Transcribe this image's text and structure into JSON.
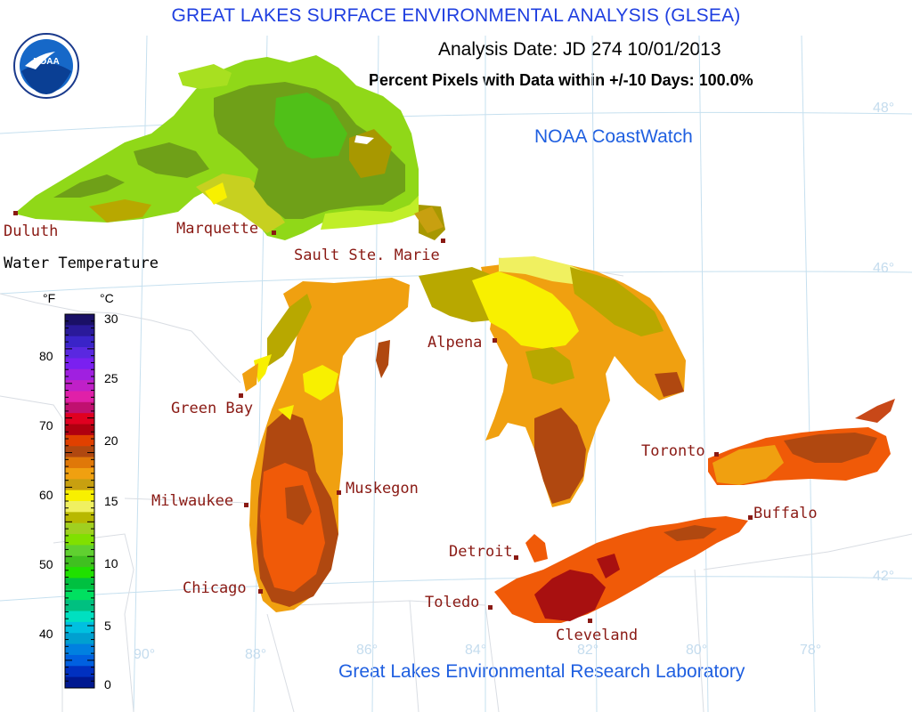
{
  "header": {
    "title": "GREAT LAKES SURFACE ENVIRONMENTAL ANALYSIS (GLSEA)",
    "analysis_date": "Analysis Date:  JD 274 10/01/2013",
    "percent_pixels": "Percent Pixels with Data within +/-10 Days: 100.0%"
  },
  "credits": {
    "coastwatch": "NOAA CoastWatch",
    "lab": "Great Lakes Environmental Research Laboratory",
    "logo_text": "NOAA"
  },
  "legend": {
    "title": "Water Temperature",
    "unit_f": "°F",
    "unit_c": "°C",
    "f_ticks": [
      "80",
      "70",
      "60",
      "50",
      "40"
    ],
    "c_ticks": [
      "30",
      "25",
      "20",
      "15",
      "10",
      "5",
      "0"
    ],
    "color_steps_top_to_bottom": [
      "#1a1066",
      "#2a1a9a",
      "#3a24c8",
      "#5a28e0",
      "#7a20f0",
      "#a020e0",
      "#c020c8",
      "#e020a8",
      "#c01070",
      "#e00020",
      "#b00010",
      "#e04000",
      "#b04810",
      "#e07808",
      "#f0a010",
      "#c8a010",
      "#f8f000",
      "#f0f060",
      "#b8b800",
      "#a0d020",
      "#80e000",
      "#60d030",
      "#40c020",
      "#20e000",
      "#00c040",
      "#00e060",
      "#00c080",
      "#00e0c0",
      "#00c0e0",
      "#00a0d0",
      "#0080e0",
      "#0060e0",
      "#0030c0",
      "#001890"
    ]
  },
  "grid_labels": {
    "longitude": [
      "90°",
      "88°",
      "86°",
      "84°",
      "82°",
      "80°",
      "78°"
    ],
    "latitude": [
      "48°",
      "46°",
      "42°"
    ]
  },
  "cities": [
    "Duluth",
    "Marquette",
    "Sault Ste. Marie",
    "Green Bay",
    "Alpena",
    "Muskegon",
    "Milwaukee",
    "Chicago",
    "Toronto",
    "Buffalo",
    "Detroit",
    "Toledo",
    "Cleveland"
  ],
  "colors": {
    "title_blue": "#1f3fe0",
    "credit_blue": "#1f5fe0",
    "city_red": "#8a1a14",
    "grid": "#c6e0ef"
  }
}
